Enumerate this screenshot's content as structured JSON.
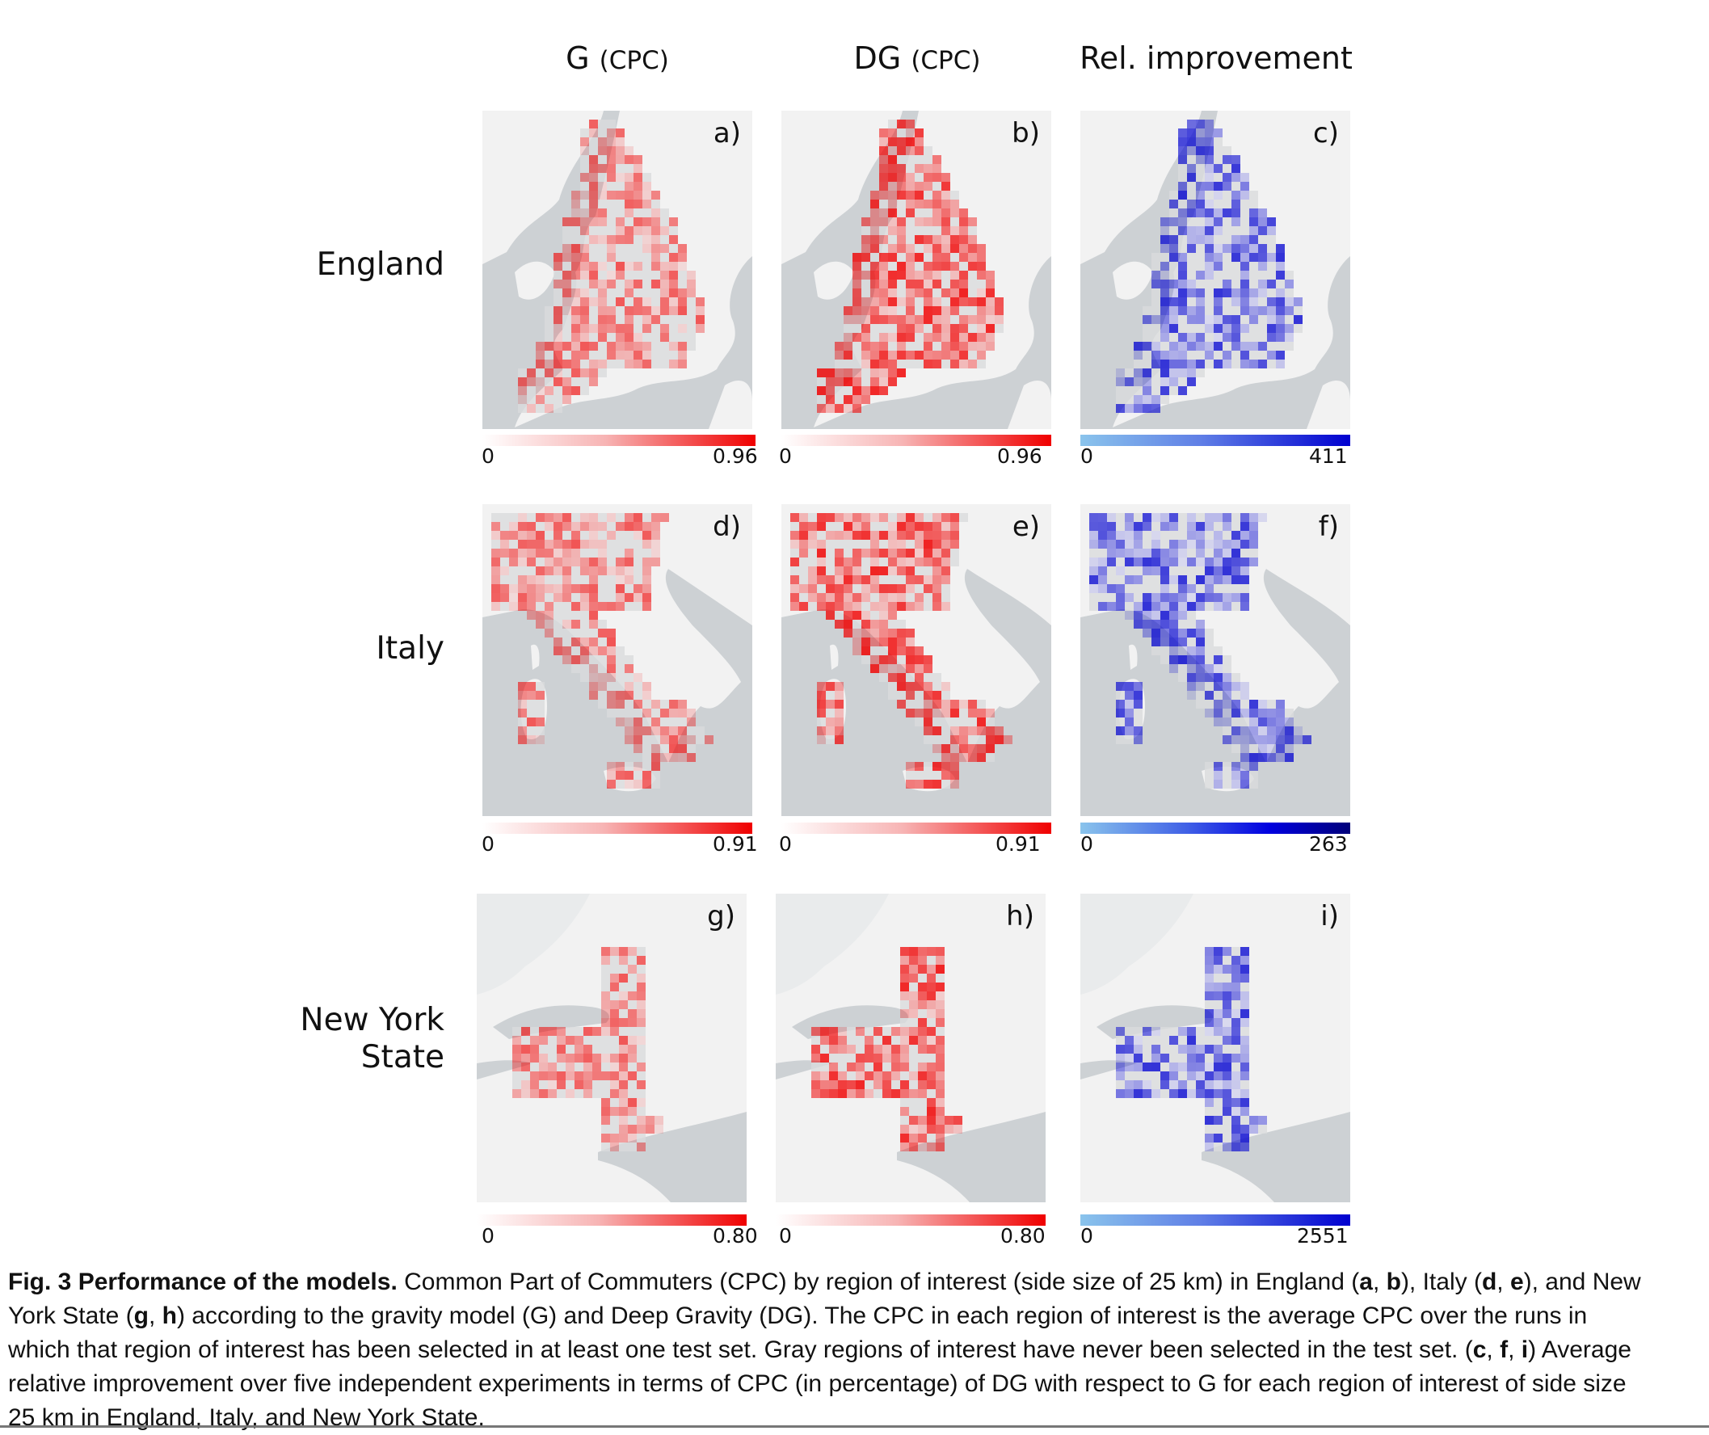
{
  "columns": {
    "g": {
      "main": "G",
      "small": "(CPC)"
    },
    "dg": {
      "main": "DG",
      "small": "(CPC)"
    },
    "rel": {
      "main": "Rel. improvement"
    }
  },
  "rows": [
    {
      "name": "England"
    },
    {
      "name": "Italy"
    },
    {
      "name": "New York State",
      "line1": "New York",
      "line2": "State"
    }
  ],
  "panels": {
    "a": {
      "letter": "a)",
      "cbar_min": "0",
      "cbar_max": "0.96"
    },
    "b": {
      "letter": "b)",
      "cbar_min": "0",
      "cbar_max": "0.96"
    },
    "c": {
      "letter": "c)",
      "cbar_min": "0",
      "cbar_max": "411"
    },
    "d": {
      "letter": "d)",
      "cbar_min": "0",
      "cbar_max": "0.91"
    },
    "e": {
      "letter": "e)",
      "cbar_min": "0",
      "cbar_max": "0.91"
    },
    "f": {
      "letter": "f)",
      "cbar_min": "0",
      "cbar_max": "263"
    },
    "g": {
      "letter": "g)",
      "cbar_min": "0",
      "cbar_max": "0.80"
    },
    "h": {
      "letter": "h)",
      "cbar_min": "0",
      "cbar_max": "0.80"
    },
    "i": {
      "letter": "i)",
      "cbar_min": "0",
      "cbar_max": "2551"
    }
  },
  "colors": {
    "cpc_high": "#f00000",
    "improvement_high": "#0000d0",
    "improvement_low": "#8ac4ec",
    "sea": "#cdd1d4",
    "land": "#f2f2f2"
  },
  "caption": {
    "fig": "Fig. 3",
    "title": "Performance of the models.",
    "s1": "Common Part of Commuters (CPC) by region of interest (side size of 25 km) in England (",
    "a": "a",
    "sep1": ", ",
    "b": "b",
    "s2": "), Italy (",
    "d": "d",
    "sep2": ", ",
    "e": "e",
    "s3": "), and New York State (",
    "g": "g",
    "sep3": ", ",
    "h": "h",
    "s4": ") according to the gravity model (G) and Deep Gravity (DG). The CPC in each region of interest is the average CPC over the runs in which that region of interest has been selected in at least one test set. Gray regions of interest have never been selected in the test set. (",
    "c": "c",
    "sep4": ", ",
    "f": "f",
    "sep5": ", ",
    "i": "i",
    "s5": ") Average relative improvement over five independent experiments in terms of CPC (in percentage) of DG with respect to G for each region of interest of side size 25 km in England, Italy, and New York State."
  }
}
